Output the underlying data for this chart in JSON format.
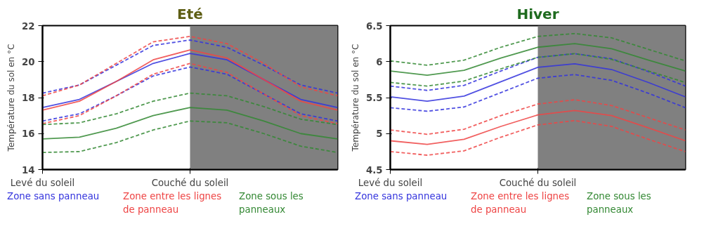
{
  "chart_data": [
    {
      "type": "line",
      "title": "Eté",
      "ylabel": "Température du sol en °C",
      "ylim": [
        14,
        22
      ],
      "yticks": [
        14,
        16,
        18,
        20,
        22
      ],
      "grid": false,
      "legend": "bottom",
      "categories": [
        "Levé du soleil",
        null,
        null,
        null,
        "Couché du soleil",
        null,
        null,
        null,
        null
      ],
      "series": [
        {
          "type": "area",
          "color": "#808080",
          "values": [
            null,
            null,
            null,
            null,
            22,
            22,
            22,
            22,
            22
          ]
        },
        {
          "name": "Zone sans panneau",
          "color": "#3333dd",
          "line_style": "solid",
          "values": [
            17.45,
            17.9,
            18.9,
            19.9,
            20.45,
            20.1,
            19.0,
            17.9,
            17.45
          ]
        },
        {
          "color": "#3333dd",
          "line_style": "dashed",
          "values": [
            18.25,
            18.7,
            19.8,
            20.9,
            21.2,
            20.8,
            19.8,
            18.7,
            18.25
          ]
        },
        {
          "color": "#3333dd",
          "line_style": "dashed",
          "values": [
            16.7,
            17.1,
            18.1,
            19.2,
            19.7,
            19.3,
            18.2,
            17.1,
            16.7
          ]
        },
        {
          "name": "Zone entre les lignes de panneau",
          "color": "#ee4444",
          "line_style": "solid",
          "values": [
            17.3,
            17.8,
            18.9,
            20.1,
            20.65,
            20.2,
            19.0,
            17.8,
            17.3
          ]
        },
        {
          "color": "#ee4444",
          "line_style": "dashed",
          "values": [
            18.1,
            18.7,
            19.9,
            21.1,
            21.4,
            21.0,
            19.9,
            18.6,
            18.1
          ]
        },
        {
          "color": "#ee4444",
          "line_style": "dashed",
          "values": [
            16.55,
            17.0,
            18.1,
            19.3,
            19.9,
            19.4,
            18.2,
            17.0,
            16.55
          ]
        },
        {
          "name": "Zone sous les panneaux",
          "color": "#338833",
          "line_style": "solid",
          "values": [
            15.7,
            15.8,
            16.3,
            17.0,
            17.45,
            17.3,
            16.7,
            16.0,
            15.7
          ]
        },
        {
          "color": "#338833",
          "line_style": "dashed",
          "values": [
            16.5,
            16.6,
            17.1,
            17.8,
            18.25,
            18.1,
            17.5,
            16.8,
            16.5
          ]
        },
        {
          "color": "#338833",
          "line_style": "dashed",
          "values": [
            14.95,
            15.0,
            15.5,
            16.2,
            16.7,
            16.6,
            16.0,
            15.3,
            14.95
          ]
        }
      ]
    },
    {
      "type": "line",
      "title": "Hiver",
      "ylabel": "Température du sol en °C",
      "ylim": [
        4.5,
        6.5
      ],
      "yticks": [
        4.5,
        5,
        5.5,
        6,
        6.5
      ],
      "grid": false,
      "legend": "bottom",
      "categories": [
        "Levé du soleil",
        null,
        null,
        null,
        "Couché du soleil",
        null,
        null,
        null,
        null
      ],
      "series": [
        {
          "type": "area",
          "color": "#808080",
          "values": [
            null,
            null,
            null,
            null,
            6.5,
            6.5,
            6.5,
            6.5,
            6.5
          ]
        },
        {
          "name": "Zone sans panneau",
          "color": "#3333dd",
          "line_style": "solid",
          "values": [
            5.51,
            5.45,
            5.52,
            5.72,
            5.92,
            5.97,
            5.89,
            5.71,
            5.51
          ]
        },
        {
          "color": "#3333dd",
          "line_style": "dashed",
          "values": [
            5.66,
            5.6,
            5.67,
            5.87,
            6.06,
            6.11,
            6.04,
            5.86,
            5.66
          ]
        },
        {
          "color": "#3333dd",
          "line_style": "dashed",
          "values": [
            5.36,
            5.31,
            5.37,
            5.57,
            5.77,
            5.82,
            5.74,
            5.56,
            5.36
          ]
        },
        {
          "name": "Zone entre les lignes de panneau",
          "color": "#ee4444",
          "line_style": "solid",
          "values": [
            4.9,
            4.85,
            4.92,
            5.1,
            5.26,
            5.32,
            5.25,
            5.08,
            4.9
          ]
        },
        {
          "color": "#ee4444",
          "line_style": "dashed",
          "values": [
            5.05,
            4.99,
            5.06,
            5.25,
            5.41,
            5.47,
            5.39,
            5.22,
            5.05
          ]
        },
        {
          "color": "#ee4444",
          "line_style": "dashed",
          "values": [
            4.75,
            4.7,
            4.76,
            4.95,
            5.12,
            5.18,
            5.1,
            4.92,
            4.75
          ]
        },
        {
          "name": "Zone sous les panneaux",
          "color": "#338833",
          "line_style": "solid",
          "values": [
            5.87,
            5.81,
            5.88,
            6.05,
            6.2,
            6.25,
            6.18,
            6.02,
            5.87
          ]
        },
        {
          "color": "#338833",
          "line_style": "dashed",
          "values": [
            6.01,
            5.95,
            6.02,
            6.2,
            6.35,
            6.39,
            6.33,
            6.17,
            6.01
          ]
        },
        {
          "color": "#338833",
          "line_style": "dashed",
          "values": [
            5.71,
            5.66,
            5.73,
            5.9,
            6.06,
            6.11,
            6.03,
            5.87,
            5.71
          ]
        }
      ]
    }
  ]
}
